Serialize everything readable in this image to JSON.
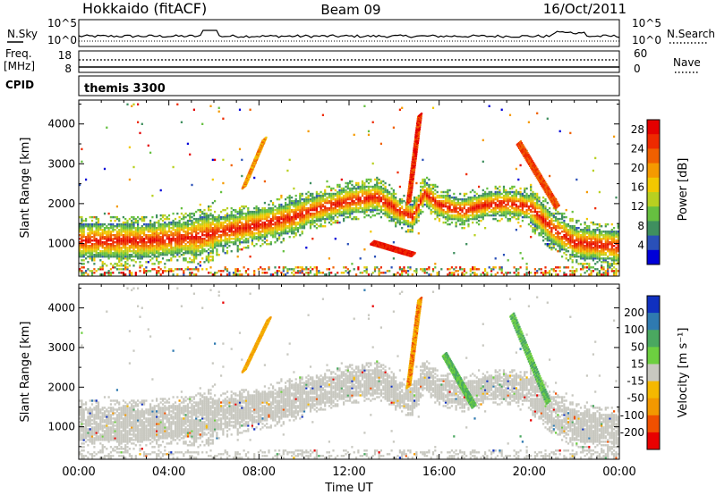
{
  "header": {
    "site": "Hokkaido (fitACF)",
    "beam": "Beam 09",
    "date": "16/Oct/2011"
  },
  "top_panels": {
    "nsky_label": "N.Sky",
    "nsky_ticks": [
      "10^5",
      "10^0"
    ],
    "nsearch_label": "N.Search",
    "nsearch_ticks": [
      "10^5",
      "10^0"
    ],
    "freq_label_1": "Freq.",
    "freq_label_2": "[MHz]",
    "freq_ticks": [
      "18",
      "8"
    ],
    "nave_label": "Nave",
    "nave_ticks": [
      "60",
      "0"
    ],
    "cpid_label": "CPID",
    "cpid_value": "themis 3300"
  },
  "colors": {
    "power": [
      "#0000d8",
      "#2a50b8",
      "#3f8f5f",
      "#66c040",
      "#b8d020",
      "#f2c800",
      "#f59a00",
      "#f06000",
      "#ee2a00",
      "#e40000"
    ],
    "velocity": [
      "#e80000",
      "#f05000",
      "#f39800",
      "#f5b800",
      "#c8c8c0",
      "#6dcf40",
      "#4aa860",
      "#2f7ab0",
      "#1030c0"
    ]
  },
  "chart_data": [
    {
      "type": "heatmap",
      "name": "power",
      "ylabel": "Slant Range [km]",
      "xlabel": "Time UT",
      "x_ticks": [
        "00:00",
        "04:00",
        "08:00",
        "12:00",
        "16:00",
        "20:00",
        "00:00"
      ],
      "y_ticks": [
        1000,
        2000,
        3000,
        4000
      ],
      "ylim": [
        180,
        4600
      ],
      "xlim_hours": [
        0,
        24
      ],
      "colorbar_label": "Power [dB]",
      "colorbar_ticks": [
        "4",
        "8",
        "12",
        "16",
        "20",
        "24",
        "28"
      ],
      "colorbar_range": [
        0,
        30
      ]
    },
    {
      "type": "heatmap",
      "name": "velocity",
      "ylabel": "Slant Range [km]",
      "xlabel": "Time UT",
      "x_ticks": [
        "00:00",
        "04:00",
        "08:00",
        "12:00",
        "16:00",
        "20:00",
        "00:00"
      ],
      "y_ticks": [
        1000,
        2000,
        3000,
        4000
      ],
      "ylim": [
        180,
        4600
      ],
      "xlim_hours": [
        0,
        24
      ],
      "colorbar_label": "Velocity [m s⁻¹]",
      "colorbar_ticks": [
        "200",
        "100",
        "50",
        "15",
        "-15",
        "-50",
        "-100",
        "-200"
      ]
    }
  ]
}
